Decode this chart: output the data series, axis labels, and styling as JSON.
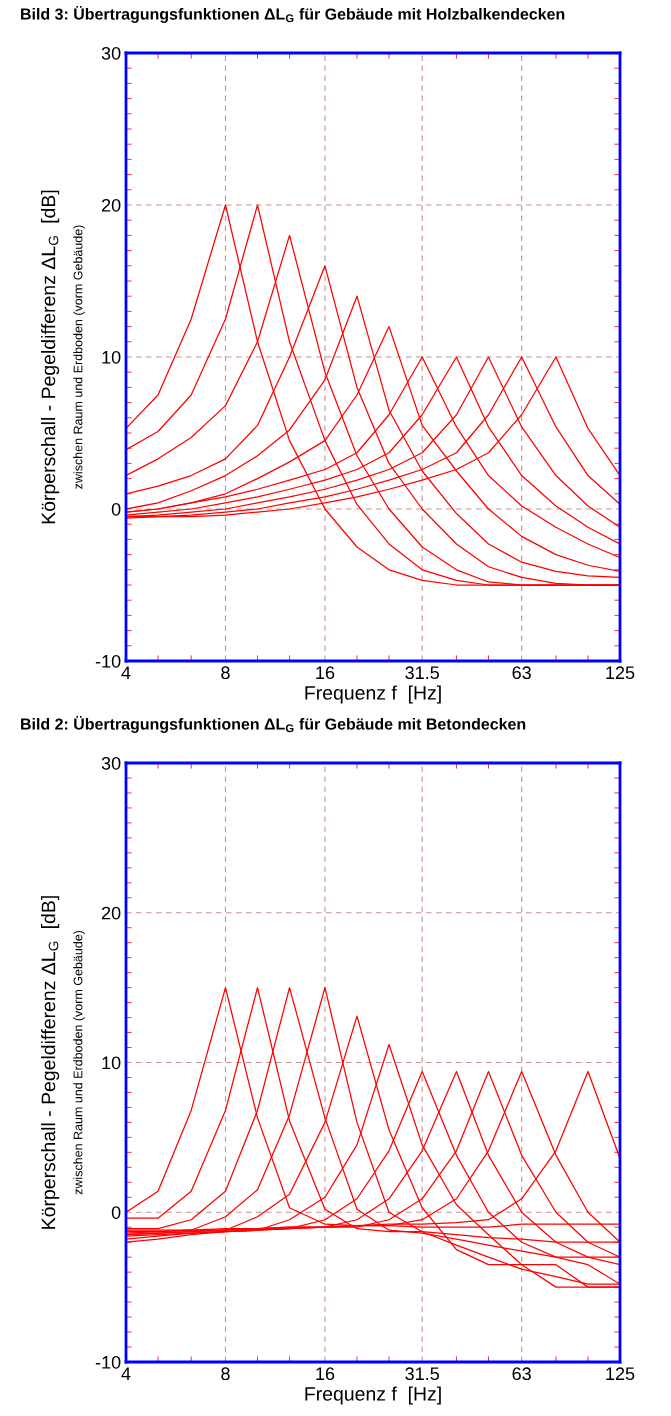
{
  "chart_data": [
    {
      "type": "line",
      "title": "Bild 3: Übertragungsfunktionen ΔL$_{G}$ für Gebäude mit Holzbalkendecken",
      "xlabel": "Frequenz f  [Hz]",
      "ylabel": "Körperschall - Pegeldifferenz ΔL$_{G}$  [dB]",
      "annotations": [
        "zwischen Raum und Erdboden (vorm Gebäude)"
      ],
      "log": "x",
      "grid": true,
      "marker": "none",
      "line_style": "solid",
      "xlim": [
        4,
        125
      ],
      "xticks": [
        4,
        8,
        16,
        31.5,
        63,
        125
      ],
      "ylim": [
        -10,
        30
      ],
      "yticks": [
        -10,
        0,
        10,
        20,
        30
      ],
      "x": [
        4,
        5,
        6.3,
        8,
        10,
        12.5,
        16,
        20,
        25,
        31.5,
        40,
        50,
        63,
        80,
        100,
        125
      ],
      "series": [
        {
          "color": "#ff0000",
          "values": [
            5.3,
            7.5,
            12.5,
            20,
            11,
            4.5,
            0,
            -2.5,
            -4,
            -4.7,
            -5,
            -5,
            -5,
            -5,
            -5,
            -5
          ]
        },
        {
          "color": "#ff0000",
          "values": [
            3.9,
            5.1,
            7.5,
            12.5,
            20,
            11,
            4.5,
            0.3,
            -2.3,
            -4,
            -4.7,
            -5,
            -5,
            -5,
            -5,
            -5
          ]
        },
        {
          "color": "#ff0000",
          "values": [
            2.2,
            3.3,
            4.7,
            6.8,
            11,
            18,
            9,
            3.5,
            0,
            -2.5,
            -4,
            -4.8,
            -5,
            -5,
            -5,
            -5
          ]
        },
        {
          "color": "#ff0000",
          "values": [
            1,
            1.5,
            2.2,
            3.3,
            5.5,
            10,
            16,
            8,
            3,
            0,
            -2.3,
            -3.8,
            -4.5,
            -4.9,
            -5,
            -5
          ]
        },
        {
          "color": "#ff0000",
          "values": [
            0,
            0.4,
            1.2,
            2.2,
            3.5,
            5.2,
            8.5,
            14,
            6.5,
            2.5,
            -0.3,
            -2.3,
            -3.5,
            -4.1,
            -4.4,
            -4.5
          ]
        },
        {
          "color": "#ff0000",
          "values": [
            -0.2,
            0,
            0.4,
            1,
            2,
            3.1,
            4.5,
            7.5,
            12,
            5.5,
            2.5,
            0,
            -1.8,
            -3,
            -3.7,
            -4.1
          ]
        },
        {
          "color": "#ff0000",
          "values": [
            -0.2,
            0,
            0.4,
            0.8,
            1.3,
            1.9,
            2.6,
            3.7,
            6.2,
            10,
            5.4,
            2.2,
            0.2,
            -1.2,
            -2.3,
            -3.2
          ]
        },
        {
          "color": "#ff0000",
          "values": [
            -0.4,
            -0.2,
            0,
            0.4,
            0.8,
            1.3,
            1.9,
            2.6,
            3.7,
            6.2,
            10,
            5.4,
            2.2,
            0.2,
            -1.2,
            -2.3
          ]
        },
        {
          "color": "#ff0000",
          "values": [
            -0.5,
            -0.4,
            -0.2,
            0,
            0.4,
            0.8,
            1.3,
            1.9,
            2.6,
            3.7,
            6.2,
            10,
            5.4,
            2.2,
            0.2,
            -1.2
          ]
        },
        {
          "color": "#ff0000",
          "values": [
            -0.5,
            -0.5,
            -0.4,
            -0.2,
            0,
            0.4,
            0.8,
            1.3,
            1.9,
            2.6,
            3.7,
            6.2,
            10,
            5.4,
            2.2,
            0.3
          ]
        },
        {
          "color": "#ff0000",
          "values": [
            -0.6,
            -0.5,
            -0.5,
            -0.4,
            -0.2,
            0,
            0.4,
            0.8,
            1.3,
            1.9,
            2.6,
            3.7,
            6.2,
            10,
            5.3,
            2.2
          ]
        }
      ]
    },
    {
      "type": "line",
      "title": "Bild 2: Übertragungsfunktionen ΔL$_{G}$ für Gebäude mit Betondecken",
      "xlabel": "Frequenz f  [Hz]",
      "ylabel": "Körperschall - Pegeldifferenz ΔL$_{G}$  [dB]",
      "annotations": [
        "zwischen Raum und Erdboden (vorm Gebäude)"
      ],
      "log": "x",
      "grid": true,
      "marker": "none",
      "line_style": "solid",
      "xlim": [
        4,
        125
      ],
      "xticks": [
        4,
        8,
        16,
        31.5,
        63,
        125
      ],
      "ylim": [
        -10,
        30
      ],
      "yticks": [
        -10,
        0,
        10,
        20,
        30
      ],
      "x": [
        4,
        5,
        6.3,
        8,
        10,
        12.5,
        16,
        20,
        25,
        31.5,
        40,
        50,
        63,
        80,
        100,
        125
      ],
      "series": [
        {
          "color": "#ff0000",
          "values": [
            0,
            1.4,
            6.8,
            15,
            6.3,
            0.3,
            -0.8,
            -0.9,
            -0.9,
            -1,
            -1,
            -1,
            -0.8,
            -0.8,
            -0.8,
            -0.8
          ]
        },
        {
          "color": "#ff0000",
          "values": [
            -0.4,
            -0.4,
            1.4,
            6.8,
            15,
            6.1,
            0.2,
            -1.1,
            -1.3,
            -1.3,
            -1.5,
            -1.7,
            -1.8,
            -2,
            -2,
            -2
          ]
        },
        {
          "color": "#ff0000",
          "values": [
            -1.1,
            -1.1,
            -0.5,
            1.4,
            6.8,
            15,
            6.3,
            0.2,
            -1.2,
            -1.4,
            -1.8,
            -2.2,
            -2.6,
            -3,
            -3,
            -3
          ]
        },
        {
          "color": "#ff0000",
          "values": [
            -1.4,
            -1.3,
            -1.2,
            -0.3,
            1.5,
            6.5,
            15,
            6,
            0,
            -1.3,
            -2.2,
            -3,
            -3.8,
            -4.3,
            -4.8,
            -4.8
          ]
        },
        {
          "color": "#ff0000",
          "values": [
            -1.5,
            -1.4,
            -1.3,
            -1.2,
            -0.3,
            1.2,
            6,
            13.1,
            5.5,
            0.3,
            -2.5,
            -3.5,
            -3.5,
            -3.5,
            -5,
            -5
          ]
        },
        {
          "color": "#ff0000",
          "values": [
            -1.6,
            -1.5,
            -1.4,
            -1.3,
            -1.2,
            -0.5,
            1,
            4.5,
            11.2,
            4.5,
            0.5,
            -1.5,
            -3.5,
            -5,
            -5,
            -5
          ]
        },
        {
          "color": "#ff0000",
          "values": [
            -1.8,
            -1.6,
            -1.4,
            -1.3,
            -1.2,
            -1.1,
            -0.5,
            0.9,
            4.1,
            9.4,
            3.8,
            0,
            -2,
            -3,
            -3.5,
            -4.8
          ]
        },
        {
          "color": "#ff0000",
          "values": [
            -2,
            -1.8,
            -1.5,
            -1.3,
            -1.2,
            -1.1,
            -1,
            -0.5,
            0.9,
            4.1,
            9.4,
            3.8,
            0,
            -2,
            -3,
            -3.5
          ]
        },
        {
          "color": "#ff0000",
          "values": [
            -1.3,
            -1.3,
            -1.2,
            -1.2,
            -1.1,
            -1.1,
            -1,
            -1,
            -0.5,
            0.9,
            4.1,
            9.4,
            3.8,
            0,
            -2,
            -3
          ]
        },
        {
          "color": "#ff0000",
          "values": [
            -1.2,
            -1.2,
            -1.2,
            -1.1,
            -1.1,
            -1,
            -1,
            -0.9,
            -0.9,
            -0.5,
            0.9,
            4.1,
            9.4,
            3.8,
            0,
            -2
          ]
        },
        {
          "color": "#ff0000",
          "values": [
            -1.5,
            -1.4,
            -1.3,
            -1.2,
            -1.1,
            -1,
            -1,
            -0.9,
            -0.8,
            -0.8,
            -0.7,
            -0.5,
            0.9,
            4.1,
            9.4,
            3.6
          ]
        }
      ]
    }
  ]
}
